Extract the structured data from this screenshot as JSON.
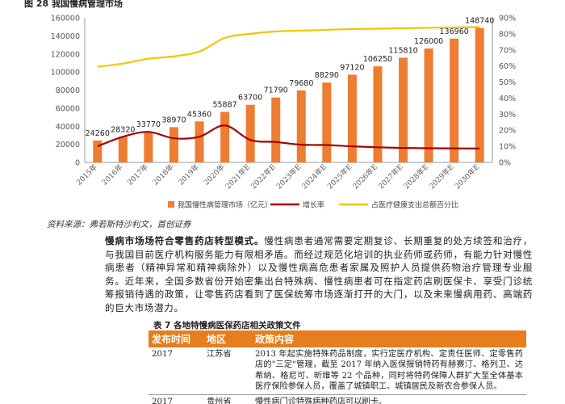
{
  "figure_title": "图 28 我国慢病管理市场",
  "source_note": "资料来源：弗若斯特沙利文，首创证券",
  "paragraph": {
    "lead": "慢病市场场符合零售药店转型模式。",
    "body": "慢性病患者通常需要定期复诊、长期重复的处方续签和治疗，与我国目前医疗机构服务能力有限相矛盾。而经过规范化培训的执业药师或药师，有能力针对慢性病患者（精神异常和精神病除外）以及慢性病高危患者家属及照护人员提供药物治疗管理专业服务。近年来，全国多数省份开始密集出台特殊病、慢性病患者可在指定药店刷医保卡、享受门诊统筹报销待遇的政策，让零售药店看到了医保统筹市场逐渐打开的大门，以及未来慢病用药、高端药的巨大市场潜力。"
  },
  "table": {
    "title": "表 7 各地特慢病医保药店相关政策文件",
    "headers": [
      "发布时间",
      "地区",
      "政策内容"
    ],
    "rows": [
      {
        "year": "2017",
        "region": "江苏省",
        "content": "2013 年起实施特殊药品制度，实行定医疗机构、定责任医师、定零售药店的\"三定\"管理，截至 2017 年纳入医保报销特药有赫赛汀、格列卫、达希纳、格尼可、昕维等 22 个品种，同时将特药保障人群扩大至全体基本医疗保险参保人员，覆盖了城镇职工、城镇居民及新农合参保人员。"
      },
      {
        "year": "2017",
        "region": "贵州省",
        "content": "慢性病门诊特殊病种药店可以刷卡。"
      }
    ]
  },
  "chart_data": {
    "type": "bar",
    "categories": [
      "2015年",
      "2016年",
      "2017年",
      "2018年",
      "2019年",
      "2020年",
      "2021年E",
      "2022年E",
      "2023年E",
      "2024年E",
      "2025年E",
      "2026年E",
      "2027年E",
      "2028年E",
      "2029年E",
      "2030年E"
    ],
    "series": [
      {
        "name": "我国慢性病管理市场（亿元）",
        "axis": "left",
        "type": "bar",
        "color": "#ed7d31",
        "values": [
          24260,
          28320,
          33770,
          38970,
          45360,
          55887,
          63700,
          71790,
          79680,
          88290,
          97120,
          106250,
          115810,
          126000,
          136960,
          148740
        ]
      },
      {
        "name": "增长率",
        "axis": "right",
        "type": "line",
        "color": "#a50000",
        "values": [
          0.1,
          0.16,
          0.19,
          0.15,
          0.16,
          0.23,
          0.14,
          0.127,
          0.11,
          0.108,
          0.1,
          0.094,
          0.09,
          0.088,
          0.087,
          0.086
        ]
      },
      {
        "name": "占医疗健康支出总额百分比",
        "axis": "right",
        "type": "line",
        "color": "#f5c400",
        "values": [
          0.595,
          0.615,
          0.645,
          0.66,
          0.69,
          0.775,
          0.8,
          0.815,
          0.82,
          0.825,
          0.83,
          0.832,
          0.835,
          0.838,
          0.84,
          0.842
        ]
      }
    ],
    "data_labels": [
      "24260",
      "28320",
      "33770",
      "38970",
      "45360",
      "55887",
      "63700",
      "71790",
      "79680",
      "88290",
      "97120",
      "106250",
      "115810",
      "126000",
      "136960",
      "148740"
    ],
    "y_left": {
      "min": 0,
      "max": 160000,
      "ticks": [
        "0",
        "20000",
        "40000",
        "60000",
        "80000",
        "100000",
        "120000",
        "140000",
        "160000"
      ]
    },
    "y_right": {
      "min": 0,
      "max": 0.9,
      "ticks": [
        "0%",
        "10%",
        "20%",
        "30%",
        "40%",
        "50%",
        "60%",
        "70%",
        "80%",
        "90%"
      ]
    },
    "legend_position": "bottom",
    "grid": false
  }
}
